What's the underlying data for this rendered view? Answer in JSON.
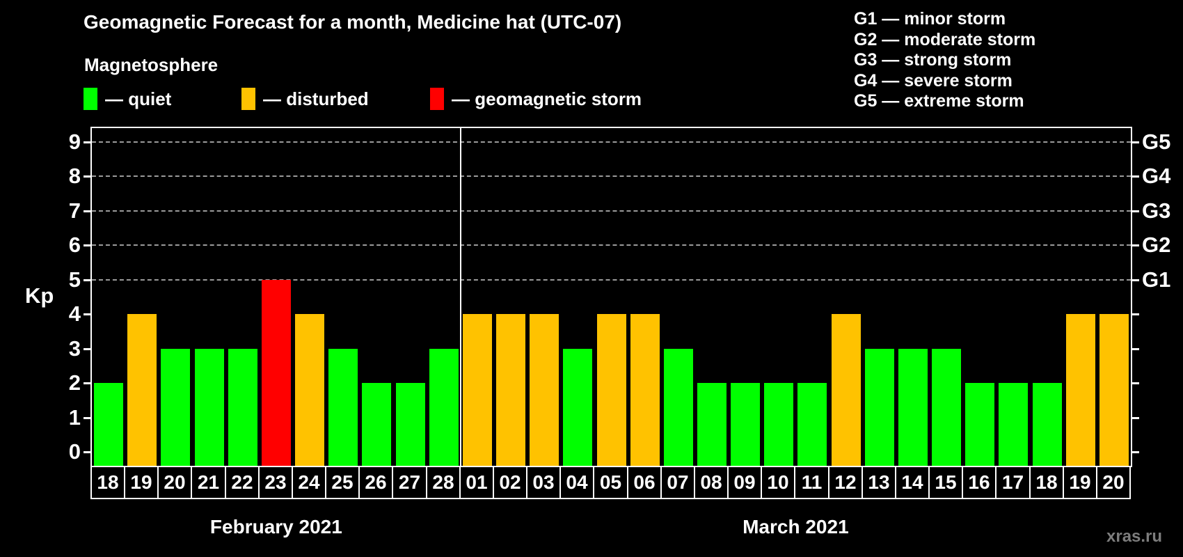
{
  "title": "Geomagnetic Forecast for a month, Medicine hat (UTC-07)",
  "subtitle": "Magnetosphere",
  "magnetosphere_legend": [
    {
      "key": "quiet",
      "label": "— quiet",
      "color": "#00ff00"
    },
    {
      "key": "disturbed",
      "label": "— disturbed",
      "color": "#ffc200"
    },
    {
      "key": "storm",
      "label": "— geomagnetic storm",
      "color": "#ff0000"
    }
  ],
  "g_scale_legend": [
    "G1 — minor storm",
    "G2 — moderate storm",
    "G3 — strong storm",
    "G4 — severe storm",
    "G5 — extreme storm"
  ],
  "watermark": "xras.ru",
  "colors": {
    "background": "#000000",
    "axis": "#ffffff",
    "grid": "#9b9b9b",
    "quiet": "#00ff00",
    "disturbed": "#ffc200",
    "storm": "#ff0000",
    "watermark": "#7d7d7d"
  },
  "chart_data": {
    "type": "bar",
    "ylabel": "Kp",
    "ylim": [
      0,
      9
    ],
    "y_ticks": [
      0,
      1,
      2,
      3,
      4,
      5,
      6,
      7,
      8,
      9
    ],
    "grid_levels": [
      5,
      6,
      7,
      8,
      9
    ],
    "legend_position": "top",
    "right_axis_labels": [
      {
        "kp": 5,
        "label": "G1"
      },
      {
        "kp": 6,
        "label": "G2"
      },
      {
        "kp": 7,
        "label": "G3"
      },
      {
        "kp": 8,
        "label": "G4"
      },
      {
        "kp": 9,
        "label": "G5"
      }
    ],
    "months": [
      {
        "label": "February 2021",
        "days": [
          {
            "day": "18",
            "kp": 2,
            "state": "quiet"
          },
          {
            "day": "19",
            "kp": 4,
            "state": "disturbed"
          },
          {
            "day": "20",
            "kp": 3,
            "state": "quiet"
          },
          {
            "day": "21",
            "kp": 3,
            "state": "quiet"
          },
          {
            "day": "22",
            "kp": 3,
            "state": "quiet"
          },
          {
            "day": "23",
            "kp": 5,
            "state": "storm"
          },
          {
            "day": "24",
            "kp": 4,
            "state": "disturbed"
          },
          {
            "day": "25",
            "kp": 3,
            "state": "quiet"
          },
          {
            "day": "26",
            "kp": 2,
            "state": "quiet"
          },
          {
            "day": "27",
            "kp": 2,
            "state": "quiet"
          },
          {
            "day": "28",
            "kp": 3,
            "state": "quiet"
          }
        ]
      },
      {
        "label": "March 2021",
        "days": [
          {
            "day": "01",
            "kp": 4,
            "state": "disturbed"
          },
          {
            "day": "02",
            "kp": 4,
            "state": "disturbed"
          },
          {
            "day": "03",
            "kp": 4,
            "state": "disturbed"
          },
          {
            "day": "04",
            "kp": 3,
            "state": "quiet"
          },
          {
            "day": "05",
            "kp": 4,
            "state": "disturbed"
          },
          {
            "day": "06",
            "kp": 4,
            "state": "disturbed"
          },
          {
            "day": "07",
            "kp": 3,
            "state": "quiet"
          },
          {
            "day": "08",
            "kp": 2,
            "state": "quiet"
          },
          {
            "day": "09",
            "kp": 2,
            "state": "quiet"
          },
          {
            "day": "10",
            "kp": 2,
            "state": "quiet"
          },
          {
            "day": "11",
            "kp": 2,
            "state": "quiet"
          },
          {
            "day": "12",
            "kp": 4,
            "state": "disturbed"
          },
          {
            "day": "13",
            "kp": 3,
            "state": "quiet"
          },
          {
            "day": "14",
            "kp": 3,
            "state": "quiet"
          },
          {
            "day": "15",
            "kp": 3,
            "state": "quiet"
          },
          {
            "day": "16",
            "kp": 2,
            "state": "quiet"
          },
          {
            "day": "17",
            "kp": 2,
            "state": "quiet"
          },
          {
            "day": "18",
            "kp": 2,
            "state": "quiet"
          },
          {
            "day": "19",
            "kp": 4,
            "state": "disturbed"
          },
          {
            "day": "20",
            "kp": 4,
            "state": "disturbed"
          }
        ]
      }
    ]
  }
}
